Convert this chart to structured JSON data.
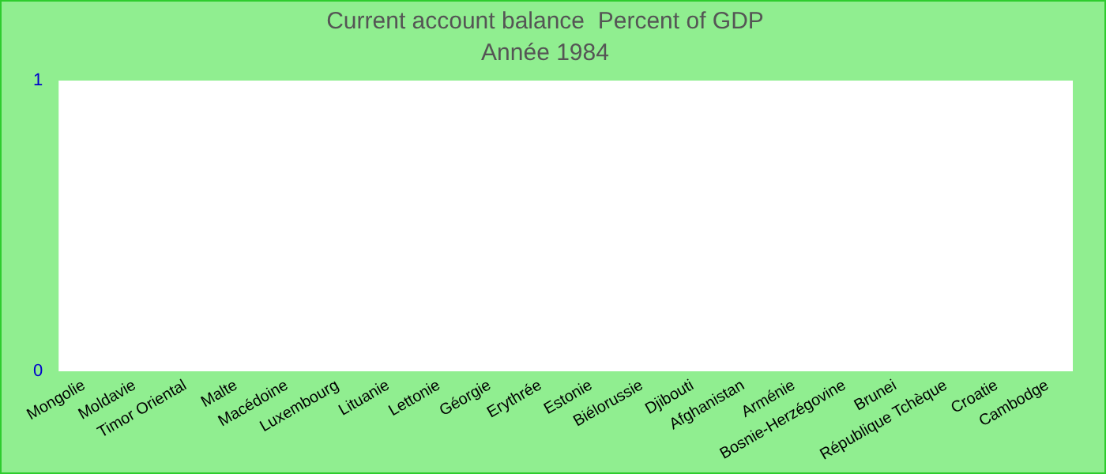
{
  "chart_data": {
    "type": "bar",
    "title": "Current account balance  Percent of GDP",
    "subtitle": "Année 1984",
    "categories": [
      "Mongolie",
      "Moldavie",
      "Timor Oriental",
      "Malte",
      "Macédoine",
      "Luxembourg",
      "Lituanie",
      "Lettonie",
      "Géorgie",
      "Erythrée",
      "Estonie",
      "Biélorussie",
      "Djibouti",
      "Afghanistan",
      "Arménie",
      "Bosnie-Herzégovine",
      "Brunei",
      "République Tchèque",
      "Croatie",
      "Cambodge"
    ],
    "values": [
      0,
      0,
      0,
      0,
      0,
      0,
      0,
      0,
      0,
      0,
      0,
      0,
      0,
      0,
      0,
      0,
      0,
      0,
      0,
      0
    ],
    "ylim": [
      0,
      1
    ],
    "yticks": [
      0,
      1
    ],
    "grid": false,
    "legend": false
  }
}
